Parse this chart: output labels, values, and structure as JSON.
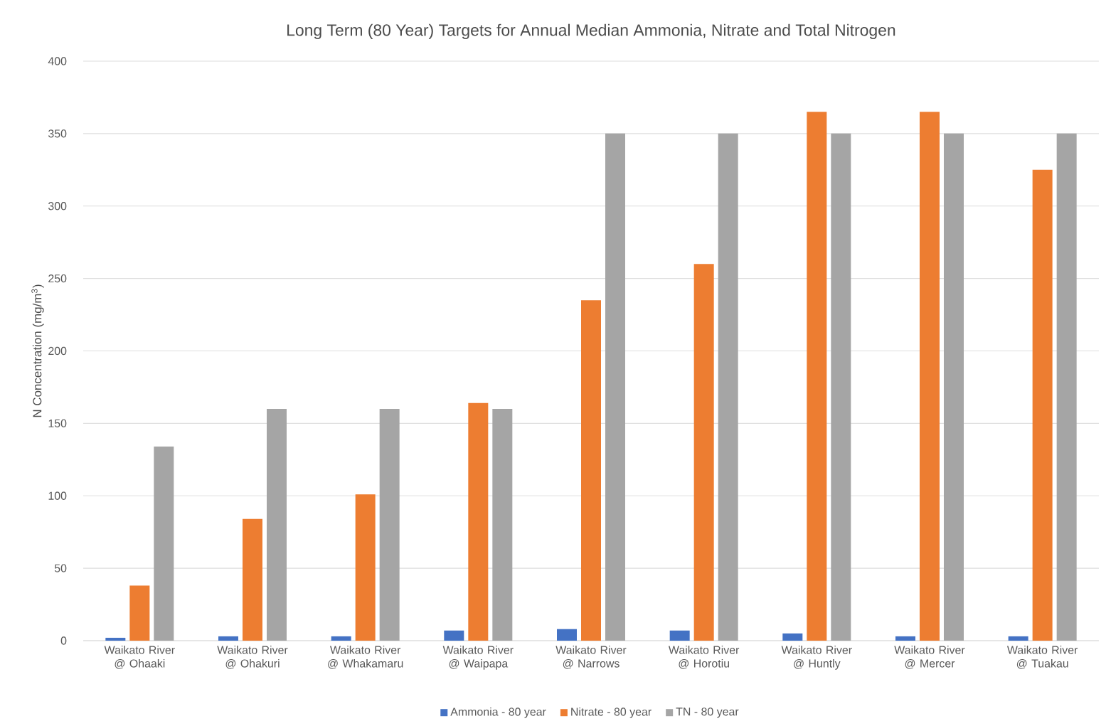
{
  "chart_data": {
    "type": "bar",
    "title": "Long Term (80 Year) Targets for Annual Median Ammonia, Nitrate and Total Nitrogen",
    "ylabel": "N Concentration (mg/m$^{3}$)",
    "categories": [
      "Waikato River @ Ohaaki",
      "Waikato River @ Ohakuri",
      "Waikato River @ Whakamaru",
      "Waikato River @ Waipapa",
      "Waikato River @ Narrows",
      "Waikato River @ Horotiu",
      "Waikato River @ Huntly",
      "Waikato River @ Mercer",
      "Waikato River @ Tuakau"
    ],
    "series": [
      {
        "name": "Ammonia - 80 year",
        "color": "#4472c4",
        "values": [
          2,
          3,
          3,
          7,
          8,
          7,
          5,
          3,
          3
        ]
      },
      {
        "name": "Nitrate - 80 year",
        "color": "#ed7d31",
        "values": [
          38,
          84,
          101,
          164,
          235,
          260,
          365,
          365,
          325
        ]
      },
      {
        "name": "TN - 80 year",
        "color": "#a5a5a5",
        "values": [
          134,
          160,
          160,
          160,
          350,
          350,
          350,
          350,
          350
        ]
      }
    ],
    "ylim": [
      0,
      400
    ],
    "yticks": [
      0,
      50,
      100,
      150,
      200,
      250,
      300,
      350,
      400
    ],
    "grid": "y",
    "legend": "bottom"
  }
}
